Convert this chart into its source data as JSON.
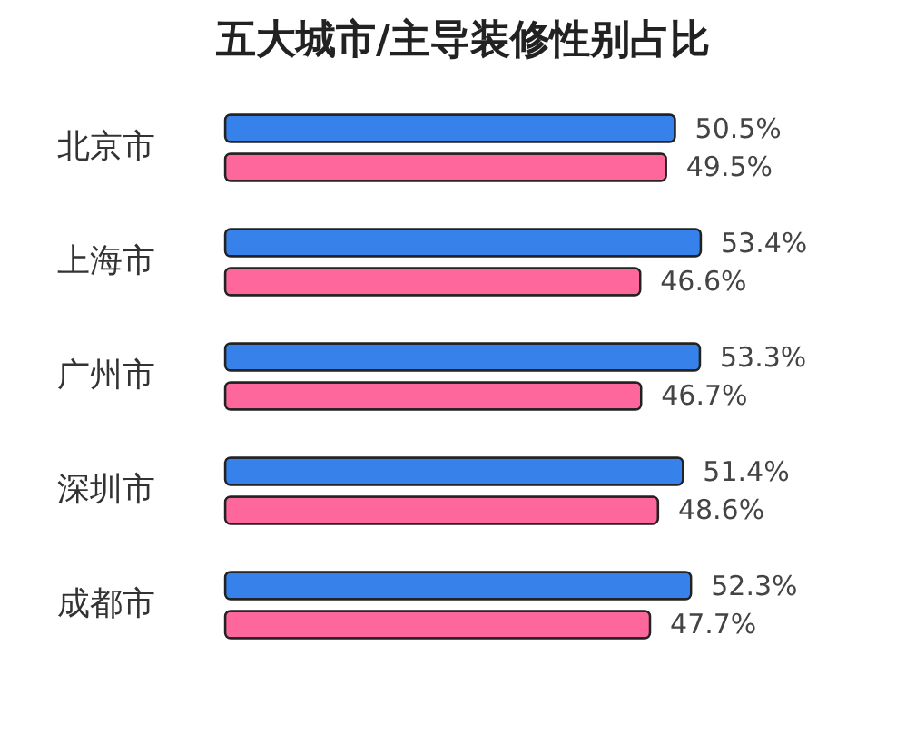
{
  "chart_data": {
    "type": "bar",
    "orientation": "horizontal",
    "title": "五大城市/主导装修性别占比",
    "categories": [
      "北京市",
      "上海市",
      "广州市",
      "深圳市",
      "成都市"
    ],
    "series": [
      {
        "color": "#3681ea",
        "values": [
          50.5,
          53.4,
          53.3,
          51.4,
          52.3
        ],
        "value_labels": [
          "50.5%",
          "53.4%",
          "53.3%",
          "51.4%",
          "52.3%"
        ]
      },
      {
        "color": "#fe679b",
        "values": [
          49.5,
          46.6,
          46.7,
          48.6,
          47.7
        ],
        "value_labels": [
          "49.5%",
          "46.6%",
          "46.7%",
          "48.6%",
          "47.7%"
        ]
      }
    ],
    "tick_labels": "y"
  }
}
